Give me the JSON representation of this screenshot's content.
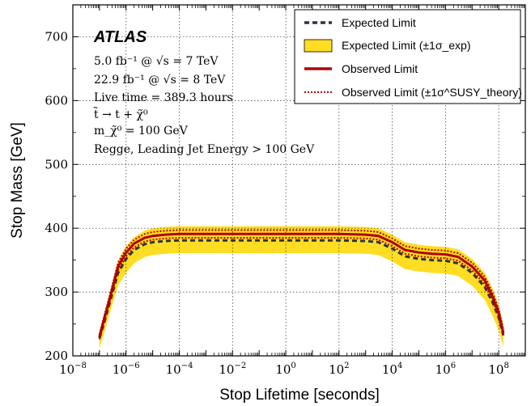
{
  "chart_data": {
    "type": "line",
    "xlabel": "Stop Lifetime [seconds]",
    "ylabel": "Stop Mass [GeV]",
    "x_scale": "log",
    "xlim": [
      1e-08,
      1000000000.0
    ],
    "ylim": [
      200,
      750
    ],
    "grid": true,
    "legend_position": "top-right",
    "x_ticks": [
      {
        "value": 1e-08,
        "base": "10",
        "exp": "−8"
      },
      {
        "value": 1e-06,
        "base": "10",
        "exp": "−6"
      },
      {
        "value": 0.0001,
        "base": "10",
        "exp": "−4"
      },
      {
        "value": 0.01,
        "base": "10",
        "exp": "−2"
      },
      {
        "value": 1,
        "base": "10",
        "exp": "0"
      },
      {
        "value": 100.0,
        "base": "10",
        "exp": "2"
      },
      {
        "value": 10000.0,
        "base": "10",
        "exp": "4"
      },
      {
        "value": 1000000.0,
        "base": "10",
        "exp": "6"
      },
      {
        "value": 100000000.0,
        "base": "10",
        "exp": "8"
      }
    ],
    "y_ticks": [
      200,
      300,
      400,
      500,
      600,
      700
    ],
    "annotations": {
      "experiment": "ATLAS",
      "lumi_7tev": "5.0  fb⁻¹ @ √s = 7 TeV",
      "lumi_8tev": "22.9 fb⁻¹ @ √s = 8 TeV",
      "live_time": "Live time = 389.3 hours",
      "decay": "t̃ → t + χ̃⁰",
      "lsp_mass": "m_χ̃⁰ = 100 GeV",
      "model": "Regge, Leading Jet Energy > 100 GeV"
    },
    "legend": [
      {
        "label": "Expected Limit",
        "style": "dashed",
        "color": "#2b3540"
      },
      {
        "label": "Expected Limit (±1σ_exp)",
        "style": "band",
        "color": "#ffdd22"
      },
      {
        "label": "Observed Limit",
        "style": "solid",
        "color": "#b00000"
      },
      {
        "label": "Observed Limit (±1σ^SUSY_theory)",
        "style": "dotted",
        "color": "#b00000"
      }
    ],
    "x": [
      1e-07,
      1.5e-07,
      2.5e-07,
      5e-07,
      1e-06,
      2e-06,
      5e-06,
      1e-05,
      3e-05,
      0.0001,
      0.001,
      0.01,
      0.1,
      1,
      10,
      100,
      1000,
      3000,
      10000,
      30000,
      100000,
      300000,
      1000000.0,
      3000000.0,
      10000000.0,
      30000000.0,
      60000000.0,
      100000000.0,
      150000000.0
    ],
    "series": [
      {
        "name": "Expected Limit",
        "values": [
          228,
          252,
          285,
          330,
          352,
          366,
          375,
          378,
          380,
          381,
          381,
          381,
          381,
          381,
          381,
          381,
          380,
          378,
          368,
          356,
          352,
          350,
          349,
          345,
          330,
          308,
          283,
          260,
          232
        ]
      },
      {
        "name": "Expected Limit (±1σ_exp) upper",
        "values": [
          240,
          266,
          300,
          350,
          372,
          386,
          396,
          400,
          402,
          403,
          403,
          403,
          403,
          403,
          403,
          403,
          402,
          400,
          390,
          378,
          374,
          372,
          371,
          367,
          352,
          330,
          305,
          280,
          248
        ]
      },
      {
        "name": "Expected Limit (±1σ_exp) lower",
        "values": [
          212,
          236,
          268,
          310,
          330,
          345,
          355,
          358,
          360,
          361,
          361,
          361,
          361,
          361,
          361,
          361,
          360,
          358,
          348,
          336,
          332,
          330,
          329,
          325,
          310,
          288,
          262,
          240,
          214
        ]
      },
      {
        "name": "Observed Limit",
        "values": [
          230,
          258,
          292,
          340,
          362,
          376,
          385,
          388,
          390,
          391,
          391,
          391,
          391,
          391,
          391,
          391,
          390,
          388,
          378,
          366,
          362,
          360,
          359,
          355,
          340,
          318,
          292,
          267,
          236
        ]
      },
      {
        "name": "Observed Limit (±1σ_theory) upper",
        "values": [
          234,
          262,
          297,
          346,
          368,
          382,
          391,
          394,
          396,
          397,
          397,
          397,
          397,
          397,
          397,
          397,
          396,
          394,
          384,
          372,
          368,
          366,
          365,
          361,
          346,
          324,
          298,
          273,
          241
        ]
      },
      {
        "name": "Observed Limit (±1σ_theory) lower",
        "values": [
          226,
          254,
          287,
          334,
          356,
          370,
          379,
          382,
          384,
          385,
          385,
          385,
          385,
          385,
          385,
          385,
          384,
          382,
          372,
          360,
          356,
          354,
          353,
          349,
          334,
          312,
          286,
          261,
          231
        ]
      }
    ]
  }
}
